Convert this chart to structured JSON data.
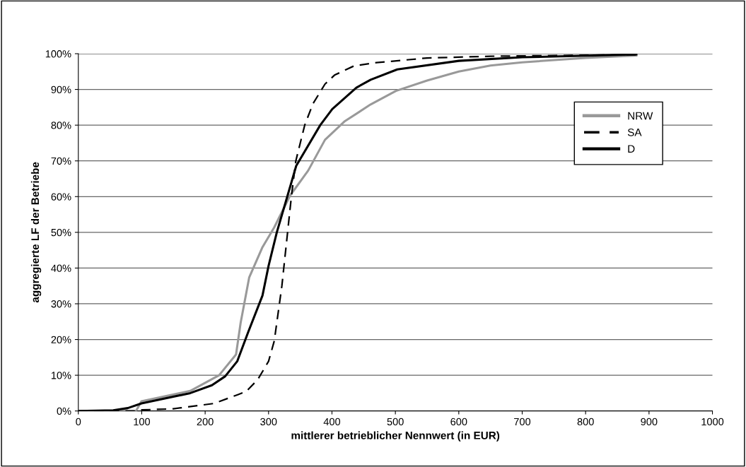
{
  "chart_data": {
    "type": "line",
    "xlabel": "mittlerer betrieblicher Nennwert (in EUR)",
    "ylabel": "aggregierte LF der Betriebe",
    "xlim": [
      0,
      1000
    ],
    "xticks": [
      0,
      100,
      200,
      300,
      400,
      500,
      600,
      700,
      800,
      900,
      1000
    ],
    "ylim": [
      0,
      100
    ],
    "yticks": [
      {
        "value": 0,
        "label": "0%"
      },
      {
        "value": 10,
        "label": "10%"
      },
      {
        "value": 20,
        "label": "20%"
      },
      {
        "value": 30,
        "label": "30%"
      },
      {
        "value": 40,
        "label": "40%"
      },
      {
        "value": 50,
        "label": "50%"
      },
      {
        "value": 60,
        "label": "60%"
      },
      {
        "value": 70,
        "label": "70%"
      },
      {
        "value": 80,
        "label": "80%"
      },
      {
        "value": 90,
        "label": "90%"
      },
      {
        "value": 100,
        "label": "100%"
      }
    ],
    "grid": "y",
    "legend": "right",
    "marker": "none",
    "series": [
      {
        "name": "NRW",
        "color": "#999999",
        "line_style": "solid",
        "x": [
          0,
          50,
          91,
          99.5,
          176.5,
          222,
          248.7,
          256,
          269.5,
          290,
          309,
          334,
          362.5,
          389,
          419.5,
          461,
          501,
          550,
          600,
          650,
          700,
          800,
          880
        ],
        "values": [
          0,
          0,
          0,
          2.7,
          5.6,
          10,
          15.8,
          24.7,
          37.4,
          45.7,
          51.4,
          60.3,
          67.3,
          75.9,
          81,
          85.8,
          89.6,
          92.5,
          95,
          96.7,
          97.6,
          98.8,
          99.5
        ]
      },
      {
        "name": "SA",
        "color": "#000000",
        "line_style": "dashed",
        "x": [
          0,
          90,
          100,
          150,
          214,
          252,
          265,
          283,
          300,
          309,
          321,
          330,
          336,
          343,
          357,
          370,
          389,
          404,
          435,
          470,
          550,
          650,
          880
        ],
        "values": [
          0,
          0,
          0.3,
          0.6,
          2.1,
          4.6,
          5.5,
          8.8,
          13.9,
          19.6,
          35,
          50,
          60,
          70,
          80,
          86,
          91.5,
          94,
          96.6,
          97.5,
          98.8,
          99.3,
          99.7
        ]
      },
      {
        "name": "D",
        "color": "#000000",
        "line_style": "solid",
        "x": [
          0,
          55,
          78,
          99.5,
          176.5,
          210.7,
          231.6,
          250.6,
          267.7,
          290.4,
          300,
          313,
          330,
          343.6,
          381.5,
          400.5,
          438.5,
          461,
          503,
          600,
          700,
          880
        ],
        "values": [
          0,
          0.2,
          0.8,
          2.1,
          5,
          7.2,
          9.7,
          13.9,
          22,
          32.3,
          40.6,
          50,
          60.3,
          68.6,
          80,
          84.5,
          90.5,
          92.7,
          95.6,
          98,
          99,
          99.8
        ]
      }
    ]
  }
}
